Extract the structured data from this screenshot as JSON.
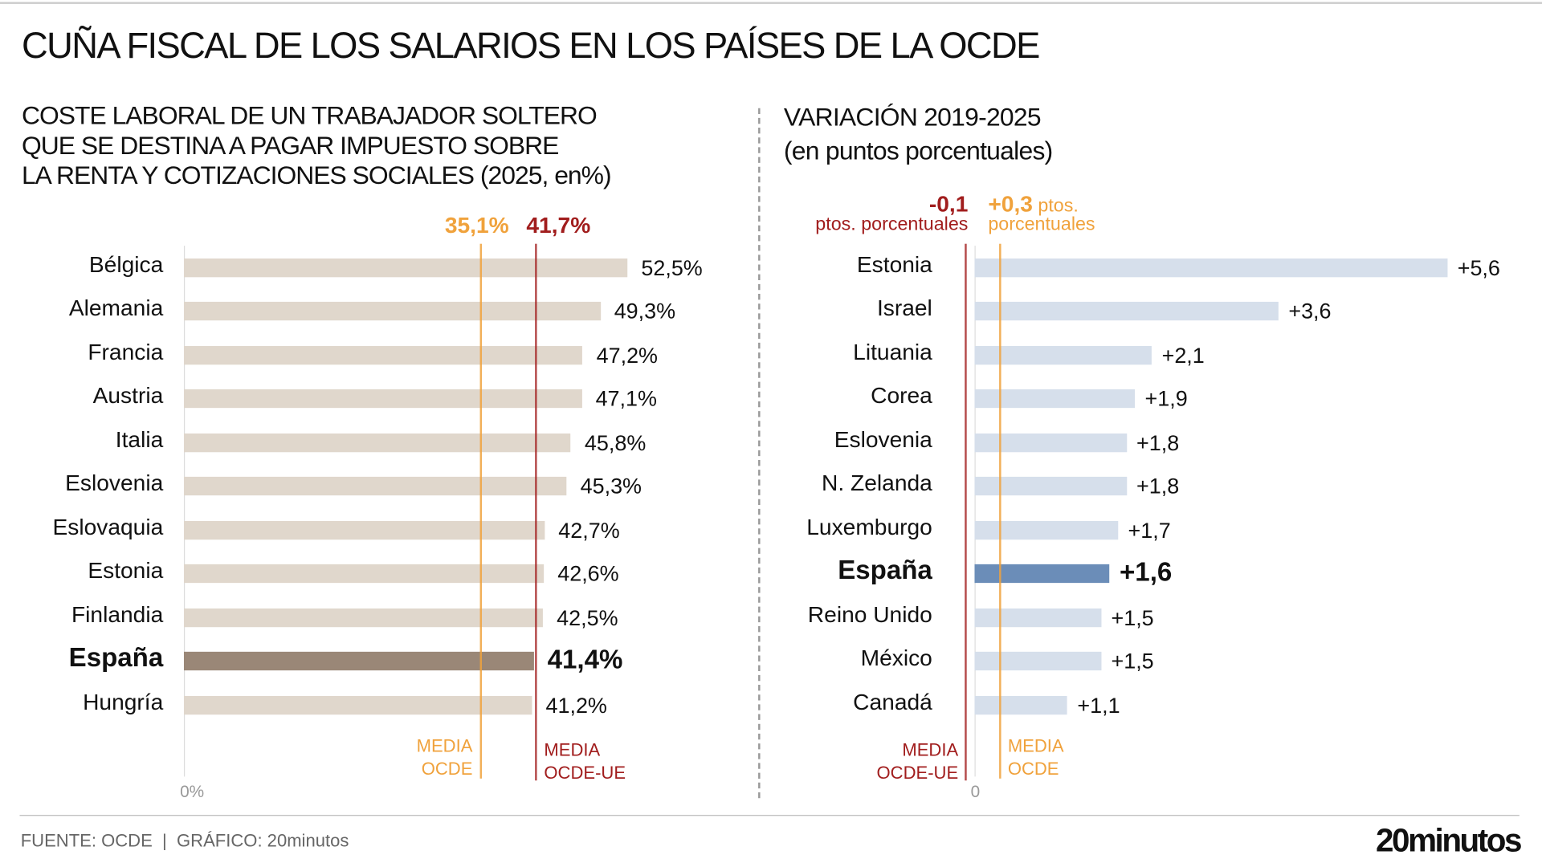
{
  "title": "CUÑA FISCAL DE LOS SALARIOS EN LOS PAÍSES DE LA OCDE",
  "footer": "FUENTE: OCDE  |  GRÁFICO: 20minutos",
  "logo": "20minutos",
  "colors": {
    "left_bar": "#e0d7cc",
    "left_highlight": "#9a8777",
    "right_bar": "#d6dfeb",
    "right_highlight": "#6b8db8",
    "orange": "#f0a23c",
    "dark_red": "#a11d1d"
  },
  "chart_data": [
    {
      "type": "bar",
      "orientation": "horizontal",
      "title": "COSTE LABORAL DE UN TRABAJADOR SOLTERO\nQUE SE DESTINA A PAGAR IMPUESTO SOBRE\nLA RENTA Y COTIZACIONES SOCIALES (2025, en%)",
      "categories": [
        "Bélgica",
        "Alemania",
        "Francia",
        "Austria",
        "Italia",
        "Eslovenia",
        "Eslovaquia",
        "Estonia",
        "Finlandia",
        "España",
        "Hungría"
      ],
      "values": [
        52.5,
        49.3,
        47.2,
        47.1,
        45.8,
        45.3,
        42.7,
        42.6,
        42.5,
        41.4,
        41.2
      ],
      "value_labels": [
        "52,5%",
        "49,3%",
        "47,2%",
        "47,1%",
        "45,8%",
        "45,3%",
        "42,7%",
        "42,6%",
        "42,5%",
        "41,4%",
        "41,2%"
      ],
      "highlight": "España",
      "axis_tick": "0%",
      "xlim": [
        0,
        52.5
      ],
      "reference_lines": [
        {
          "value": 35.1,
          "label": "35,1%",
          "note": "MEDIA\nOCDE",
          "color": "orange"
        },
        {
          "value": 41.7,
          "label": "41,7%",
          "note": "MEDIA\nOCDE-UE",
          "color": "dark_red"
        }
      ]
    },
    {
      "type": "bar",
      "orientation": "horizontal",
      "title": "VARIACIÓN 2019-2025\n(en puntos porcentuales)",
      "categories": [
        "Estonia",
        "Israel",
        "Lituania",
        "Corea",
        "Eslovenia",
        "N. Zelanda",
        "Luxemburgo",
        "España",
        "Reino Unido",
        "México",
        "Canadá"
      ],
      "values": [
        5.6,
        3.6,
        2.1,
        1.9,
        1.8,
        1.8,
        1.7,
        1.6,
        1.5,
        1.5,
        1.1
      ],
      "value_labels": [
        "+5,6",
        "+3,6",
        "+2,1",
        "+1,9",
        "+1,8",
        "+1,8",
        "+1,7",
        "+1,6",
        "+1,5",
        "+1,5",
        "+1,1"
      ],
      "highlight": "España",
      "axis_tick": "0",
      "xlim": [
        0,
        5.6
      ],
      "reference_lines": [
        {
          "value": -0.1,
          "label": "-0,1",
          "label_unit": "ptos. porcentuales",
          "note": "MEDIA\nOCDE-UE",
          "color": "dark_red"
        },
        {
          "value": 0.3,
          "label": "+0,3",
          "label_unit": "ptos.",
          "label_unit2": "porcentuales",
          "note": "MEDIA\nOCDE",
          "color": "orange"
        }
      ]
    }
  ]
}
